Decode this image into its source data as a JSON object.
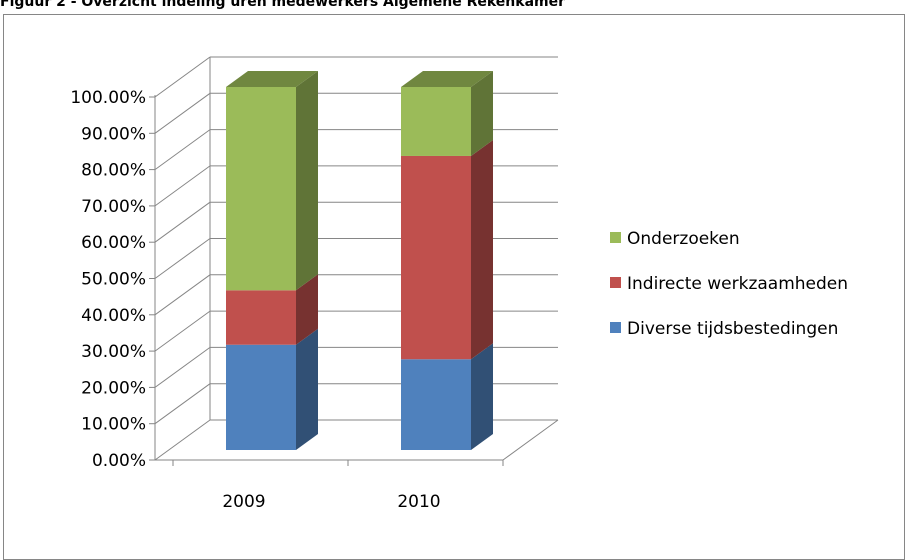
{
  "caption": "Figuur 2 - Overzicht indeling uren medewerkers Algemene Rekenkamer",
  "chart_data": {
    "type": "bar",
    "stacked": true,
    "three_d": true,
    "categories": [
      "2009",
      "2010"
    ],
    "series": [
      {
        "name": "Diverse tijdsbestedingen",
        "color": "#4f81bd",
        "values": [
          0.29,
          0.25
        ]
      },
      {
        "name": "Indirecte werkzaamheden",
        "color": "#c0504d",
        "values": [
          0.15,
          0.56
        ]
      },
      {
        "name": "Onderzoeken",
        "color": "#9bbb59",
        "values": [
          0.56,
          0.19
        ]
      }
    ],
    "ylim": [
      0,
      1
    ],
    "yticks": [
      "0.00%",
      "10.00%",
      "20.00%",
      "30.00%",
      "40.00%",
      "50.00%",
      "60.00%",
      "70.00%",
      "80.00%",
      "90.00%",
      "100.00%"
    ],
    "legend_order": [
      "Onderzoeken",
      "Indirecte werkzaamheden",
      "Diverse tijdsbestedingen"
    ],
    "legend_position": "right",
    "grid": true
  }
}
